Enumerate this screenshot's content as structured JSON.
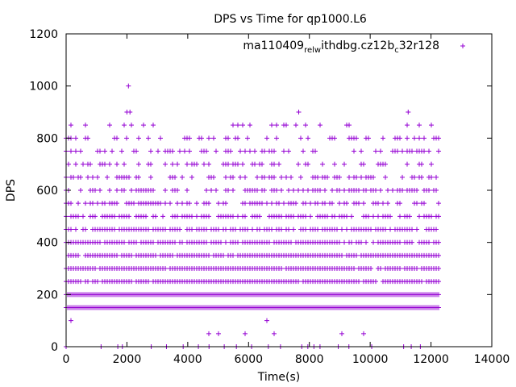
{
  "chart_data": {
    "type": "scatter",
    "title": "DPS vs Time for qp1000.L6",
    "xlabel": "Time(s)",
    "ylabel": "DPS",
    "xlim": [
      0,
      14000
    ],
    "ylim": [
      0,
      1200
    ],
    "x_ticks": [
      "0",
      "2000",
      "4000",
      "6000",
      "8000",
      "10000",
      "12000",
      "14000"
    ],
    "y_ticks": [
      "0",
      "200",
      "400",
      "600",
      "800",
      "1000",
      "1200"
    ],
    "x_tick_values": [
      0,
      2000,
      4000,
      6000,
      8000,
      10000,
      12000,
      14000
    ],
    "y_tick_values": [
      0,
      200,
      400,
      600,
      800,
      1000,
      1200
    ],
    "grid": false,
    "legend_position": "top-right",
    "marker": "plus",
    "color": "#9400d3",
    "series": [
      {
        "legend_parts": [
          {
            "text": "ma110409",
            "sub": false
          },
          {
            "text": "rel",
            "sub": true
          },
          {
            "text": "w",
            "sub": true
          },
          {
            "text": "ithdbg.cz12b",
            "sub": false
          },
          {
            "text": "c",
            "sub": true
          },
          {
            "text": "32r128",
            "sub": false
          }
        ],
        "x_end": 12250,
        "bands": [
          {
            "y": 50,
            "density": 0.04
          },
          {
            "y": 100,
            "density": 0.03
          },
          {
            "y": 150,
            "density": 1.0
          },
          {
            "y": 200,
            "density": 1.0
          },
          {
            "y": 250,
            "density": 0.95
          },
          {
            "y": 300,
            "density": 0.95
          },
          {
            "y": 350,
            "density": 0.9
          },
          {
            "y": 400,
            "density": 0.85
          },
          {
            "y": 450,
            "density": 0.75
          },
          {
            "y": 500,
            "density": 0.65
          },
          {
            "y": 550,
            "density": 0.55
          },
          {
            "y": 600,
            "density": 0.5
          },
          {
            "y": 650,
            "density": 0.4
          },
          {
            "y": 700,
            "density": 0.35
          },
          {
            "y": 750,
            "density": 0.35
          },
          {
            "y": 800,
            "density": 0.3
          },
          {
            "y": 850,
            "density": 0.12
          }
        ],
        "sparse_points": [
          [
            0,
            0
          ],
          [
            1150,
            0
          ],
          [
            1700,
            0
          ],
          [
            1850,
            0
          ],
          [
            2800,
            0
          ],
          [
            3300,
            0
          ],
          [
            3850,
            0
          ],
          [
            4350,
            0
          ],
          [
            4700,
            0
          ],
          [
            5200,
            0
          ],
          [
            5600,
            0
          ],
          [
            6100,
            0
          ],
          [
            6650,
            0
          ],
          [
            7050,
            0
          ],
          [
            7750,
            0
          ],
          [
            7950,
            0
          ],
          [
            8150,
            0
          ],
          [
            8350,
            0
          ],
          [
            8950,
            0
          ],
          [
            9300,
            0
          ],
          [
            10050,
            0
          ],
          [
            11100,
            0
          ],
          [
            11350,
            0
          ],
          [
            11650,
            0
          ],
          [
            2050,
            1000
          ],
          [
            2000,
            900
          ],
          [
            2100,
            900
          ],
          [
            7650,
            900
          ],
          [
            11250,
            900
          ]
        ]
      }
    ]
  }
}
